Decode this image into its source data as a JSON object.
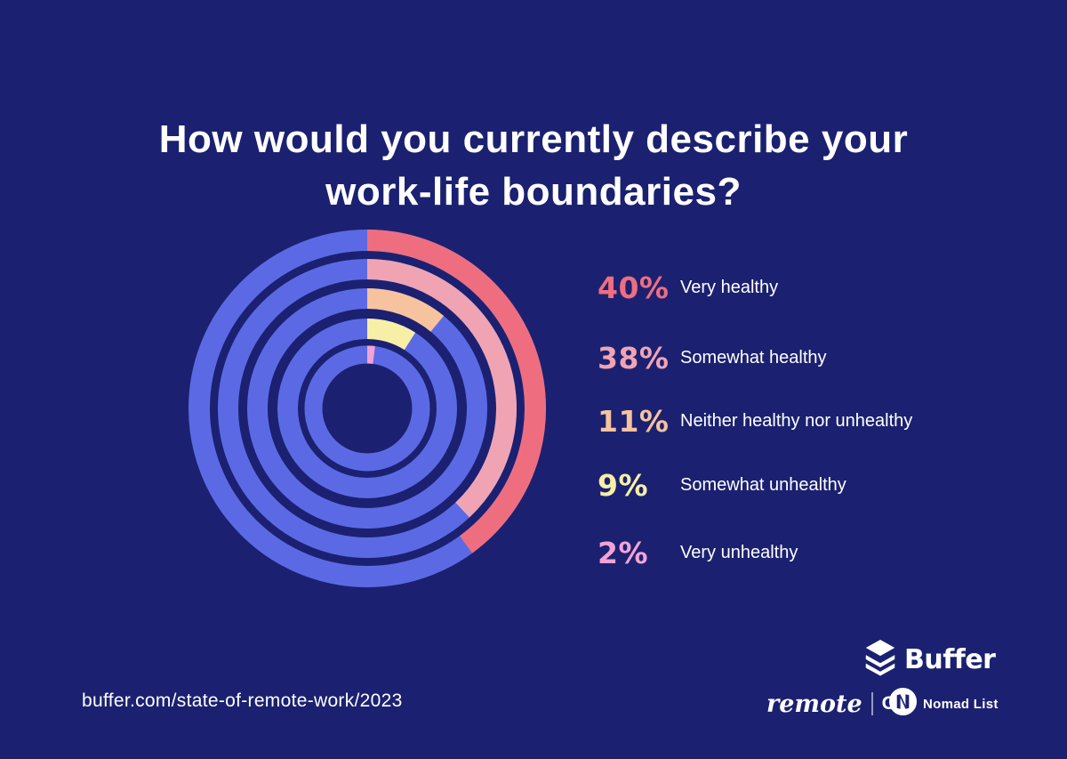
{
  "page": {
    "background_color": "#1b2170",
    "text_color": "#ffffff"
  },
  "title": {
    "line1": "How would you currently describe your",
    "line2": "work-life boundaries?"
  },
  "chart_data": {
    "type": "radial-bar",
    "title": "How would you currently describe your work-life boundaries?",
    "categories": [
      "Very healthy",
      "Somewhat healthy",
      "Neither healthy nor unhealthy",
      "Somewhat unhealthy",
      "Very unhealthy"
    ],
    "values": [
      40,
      38,
      11,
      9,
      2
    ],
    "unit": "%",
    "colors": [
      "#ee6e80",
      "#f0a4b3",
      "#f7c29e",
      "#f7efa6",
      "#f2a3d6"
    ],
    "track_color": "#5b6ae4",
    "start_angle_deg": 0,
    "direction": "clockwise",
    "legend_position": "right",
    "rings": [
      {
        "radius": 189,
        "thickness": 24
      },
      {
        "radius": 156.5,
        "thickness": 23
      },
      {
        "radius": 123.5,
        "thickness": 23
      },
      {
        "radius": 89.5,
        "thickness": 23
      },
      {
        "radius": 60.5,
        "thickness": 20
      }
    ]
  },
  "legend": {
    "items": [
      {
        "value": "40%",
        "label": "Very healthy",
        "color": "#ee6e80"
      },
      {
        "value": "38%",
        "label": "Somewhat healthy",
        "color": "#f0a4b3"
      },
      {
        "value": "11%",
        "label": "Neither healthy nor unhealthy",
        "color": "#f7c29e"
      },
      {
        "value": "9%",
        "label": "Somewhat unhealthy",
        "color": "#f7efa6"
      },
      {
        "value": "2%",
        "label": "Very unhealthy",
        "color": "#f2a3d6"
      }
    ]
  },
  "footer": {
    "url": "buffer.com/state-of-remote-work/2023",
    "buffer_wordmark": "Buffer",
    "remoteok": {
      "remote": "remote",
      "ok": "OK"
    },
    "nomadlist_label": "Nomad List"
  }
}
